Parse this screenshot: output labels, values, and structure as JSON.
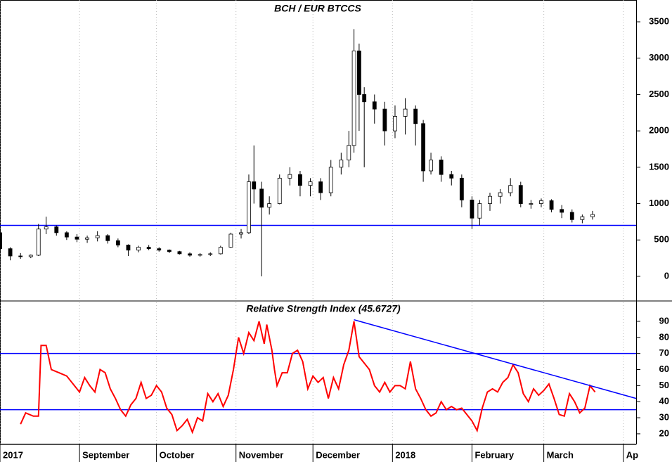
{
  "chart_data": [
    {
      "type": "candlestick",
      "title": "BCH / EUR BTCCS",
      "x": [
        0,
        4,
        8,
        12,
        15,
        18,
        22,
        26,
        30,
        34,
        38,
        42,
        46,
        50,
        54,
        58,
        62,
        66,
        70,
        74,
        78,
        82,
        86,
        90,
        94,
        97,
        99,
        102,
        105,
        109,
        113,
        117,
        121,
        125,
        129,
        133,
        136,
        138,
        140,
        142,
        146,
        150,
        154,
        158,
        162,
        165,
        168,
        172,
        176,
        180,
        184,
        187,
        191,
        195,
        199,
        203,
        207,
        211,
        215,
        219,
        223,
        227,
        231
      ],
      "open": [
        600,
        380,
        280,
        270,
        290,
        650,
        680,
        600,
        540,
        510,
        530,
        560,
        490,
        430,
        360,
        400,
        380,
        360,
        340,
        310,
        290,
        300,
        310,
        400,
        580,
        600,
        1300,
        1200,
        950,
        1000,
        1350,
        1400,
        1250,
        1300,
        1150,
        1500,
        1600,
        1800,
        3100,
        2500,
        2400,
        2300,
        2000,
        2200,
        2300,
        2100,
        1450,
        1600,
        1400,
        1350,
        1050,
        800,
        1000,
        1100,
        1150,
        1250,
        1000,
        1000,
        1040,
        920,
        880,
        780,
        820
      ],
      "high": [
        650,
        400,
        320,
        300,
        720,
        820,
        700,
        620,
        580,
        560,
        620,
        580,
        520,
        440,
        420,
        430,
        400,
        370,
        350,
        330,
        320,
        330,
        420,
        600,
        650,
        1400,
        1800,
        1300,
        1100,
        1400,
        1500,
        1450,
        1350,
        1350,
        1600,
        1700,
        2000,
        3400,
        3200,
        2600,
        2500,
        2400,
        2350,
        2450,
        2350,
        2150,
        1700,
        1650,
        1450,
        1400,
        1100,
        1050,
        1150,
        1200,
        1350,
        1300,
        1050,
        1070,
        1060,
        980,
        920,
        850,
        900
      ],
      "low": [
        350,
        220,
        240,
        250,
        280,
        580,
        560,
        500,
        470,
        460,
        480,
        450,
        400,
        280,
        330,
        360,
        340,
        320,
        300,
        270,
        270,
        280,
        300,
        390,
        520,
        580,
        1000,
        0,
        850,
        990,
        1250,
        1100,
        1100,
        1050,
        1100,
        1400,
        1500,
        1700,
        2000,
        1500,
        2100,
        1800,
        1900,
        1950,
        1800,
        1300,
        1400,
        1300,
        1250,
        950,
        650,
        700,
        900,
        1000,
        1100,
        950,
        930,
        950,
        880,
        800,
        740,
        730,
        780
      ],
      "close": [
        380,
        280,
        270,
        290,
        650,
        680,
        600,
        540,
        510,
        530,
        560,
        490,
        430,
        360,
        400,
        380,
        360,
        340,
        310,
        290,
        300,
        310,
        400,
        580,
        600,
        1300,
        1200,
        950,
        1000,
        1350,
        1400,
        1250,
        1300,
        1150,
        1500,
        1600,
        1800,
        3100,
        2500,
        2400,
        2300,
        2000,
        2200,
        2300,
        2100,
        1450,
        1600,
        1400,
        1350,
        1050,
        800,
        1000,
        1100,
        1150,
        1250,
        1000,
        1000,
        1040,
        920,
        880,
        780,
        820,
        850
      ],
      "xlim": [
        0,
        248
      ],
      "ylim": [
        -310,
        3800
      ],
      "yticks": [
        0,
        500,
        1000,
        1500,
        2000,
        2500,
        3000,
        3500
      ],
      "hlines": [
        700
      ],
      "line_color": "#0000ff"
    },
    {
      "type": "line",
      "title": "Relative Strength Index (45.6727)",
      "series": [
        {
          "color": "#ff0000",
          "x": [
            8,
            10,
            13,
            15,
            16,
            18,
            20,
            23,
            26,
            29,
            31,
            33,
            35,
            37,
            39,
            41,
            43,
            45,
            47,
            49,
            51,
            53,
            55,
            57,
            59,
            61,
            63,
            65,
            67,
            69,
            71,
            73,
            75,
            77,
            79,
            81,
            83,
            85,
            87,
            89,
            91,
            93,
            95,
            97,
            99,
            101,
            103,
            104,
            106,
            107,
            108,
            110,
            112,
            114,
            116,
            118,
            120,
            122,
            124,
            126,
            128,
            130,
            132,
            134,
            136,
            138,
            140,
            142,
            144,
            146,
            148,
            150,
            152,
            154,
            156,
            158,
            160,
            162,
            164,
            166,
            168,
            170,
            172,
            174,
            176,
            178,
            180,
            182,
            184,
            186,
            188,
            190,
            192,
            194,
            196,
            198,
            200,
            202,
            204,
            206,
            208,
            210,
            212,
            214,
            216,
            218,
            220,
            222,
            224,
            226,
            228,
            230,
            232
          ],
          "values": [
            26,
            33,
            31,
            31,
            75,
            75,
            60,
            58,
            56,
            50,
            46,
            55,
            50,
            46,
            60,
            58,
            48,
            42,
            35,
            31,
            38,
            42,
            52,
            42,
            44,
            50,
            46,
            36,
            32,
            22,
            25,
            29,
            21,
            30,
            28,
            45,
            40,
            45,
            37,
            44,
            60,
            80,
            70,
            83,
            78,
            90,
            76,
            88,
            72,
            60,
            50,
            58,
            58,
            70,
            72,
            65,
            48,
            56,
            52,
            55,
            42,
            55,
            48,
            63,
            72,
            90,
            68,
            64,
            60,
            50,
            46,
            52,
            46,
            50,
            50,
            48,
            65,
            48,
            42,
            35,
            31,
            33,
            40,
            35,
            37,
            35,
            36,
            32,
            28,
            22,
            36,
            46,
            48,
            46,
            52,
            55,
            63,
            58,
            45,
            40,
            48,
            44,
            47,
            51,
            42,
            32,
            31,
            45,
            40,
            33,
            36,
            50,
            46
          ]
        }
      ],
      "xlim": [
        0,
        248
      ],
      "ylim": [
        13.4,
        101.8
      ],
      "yticks": [
        20,
        30,
        40,
        50,
        60,
        70,
        80,
        90
      ],
      "xticks": [
        {
          "value": 0,
          "label": "2017"
        },
        {
          "value": 31,
          "label": "September"
        },
        {
          "value": 61,
          "label": "October"
        },
        {
          "value": 92,
          "label": "November"
        },
        {
          "value": 122,
          "label": "December"
        },
        {
          "value": 153,
          "label": "2018"
        },
        {
          "value": 184,
          "label": "February"
        },
        {
          "value": 212,
          "label": "March"
        },
        {
          "value": 243,
          "label": "Ap"
        }
      ],
      "hlines": [
        70,
        35
      ],
      "line_color": "#0000ff",
      "trendline": {
        "x": [
          138,
          248
        ],
        "y": [
          91,
          42
        ]
      }
    }
  ]
}
